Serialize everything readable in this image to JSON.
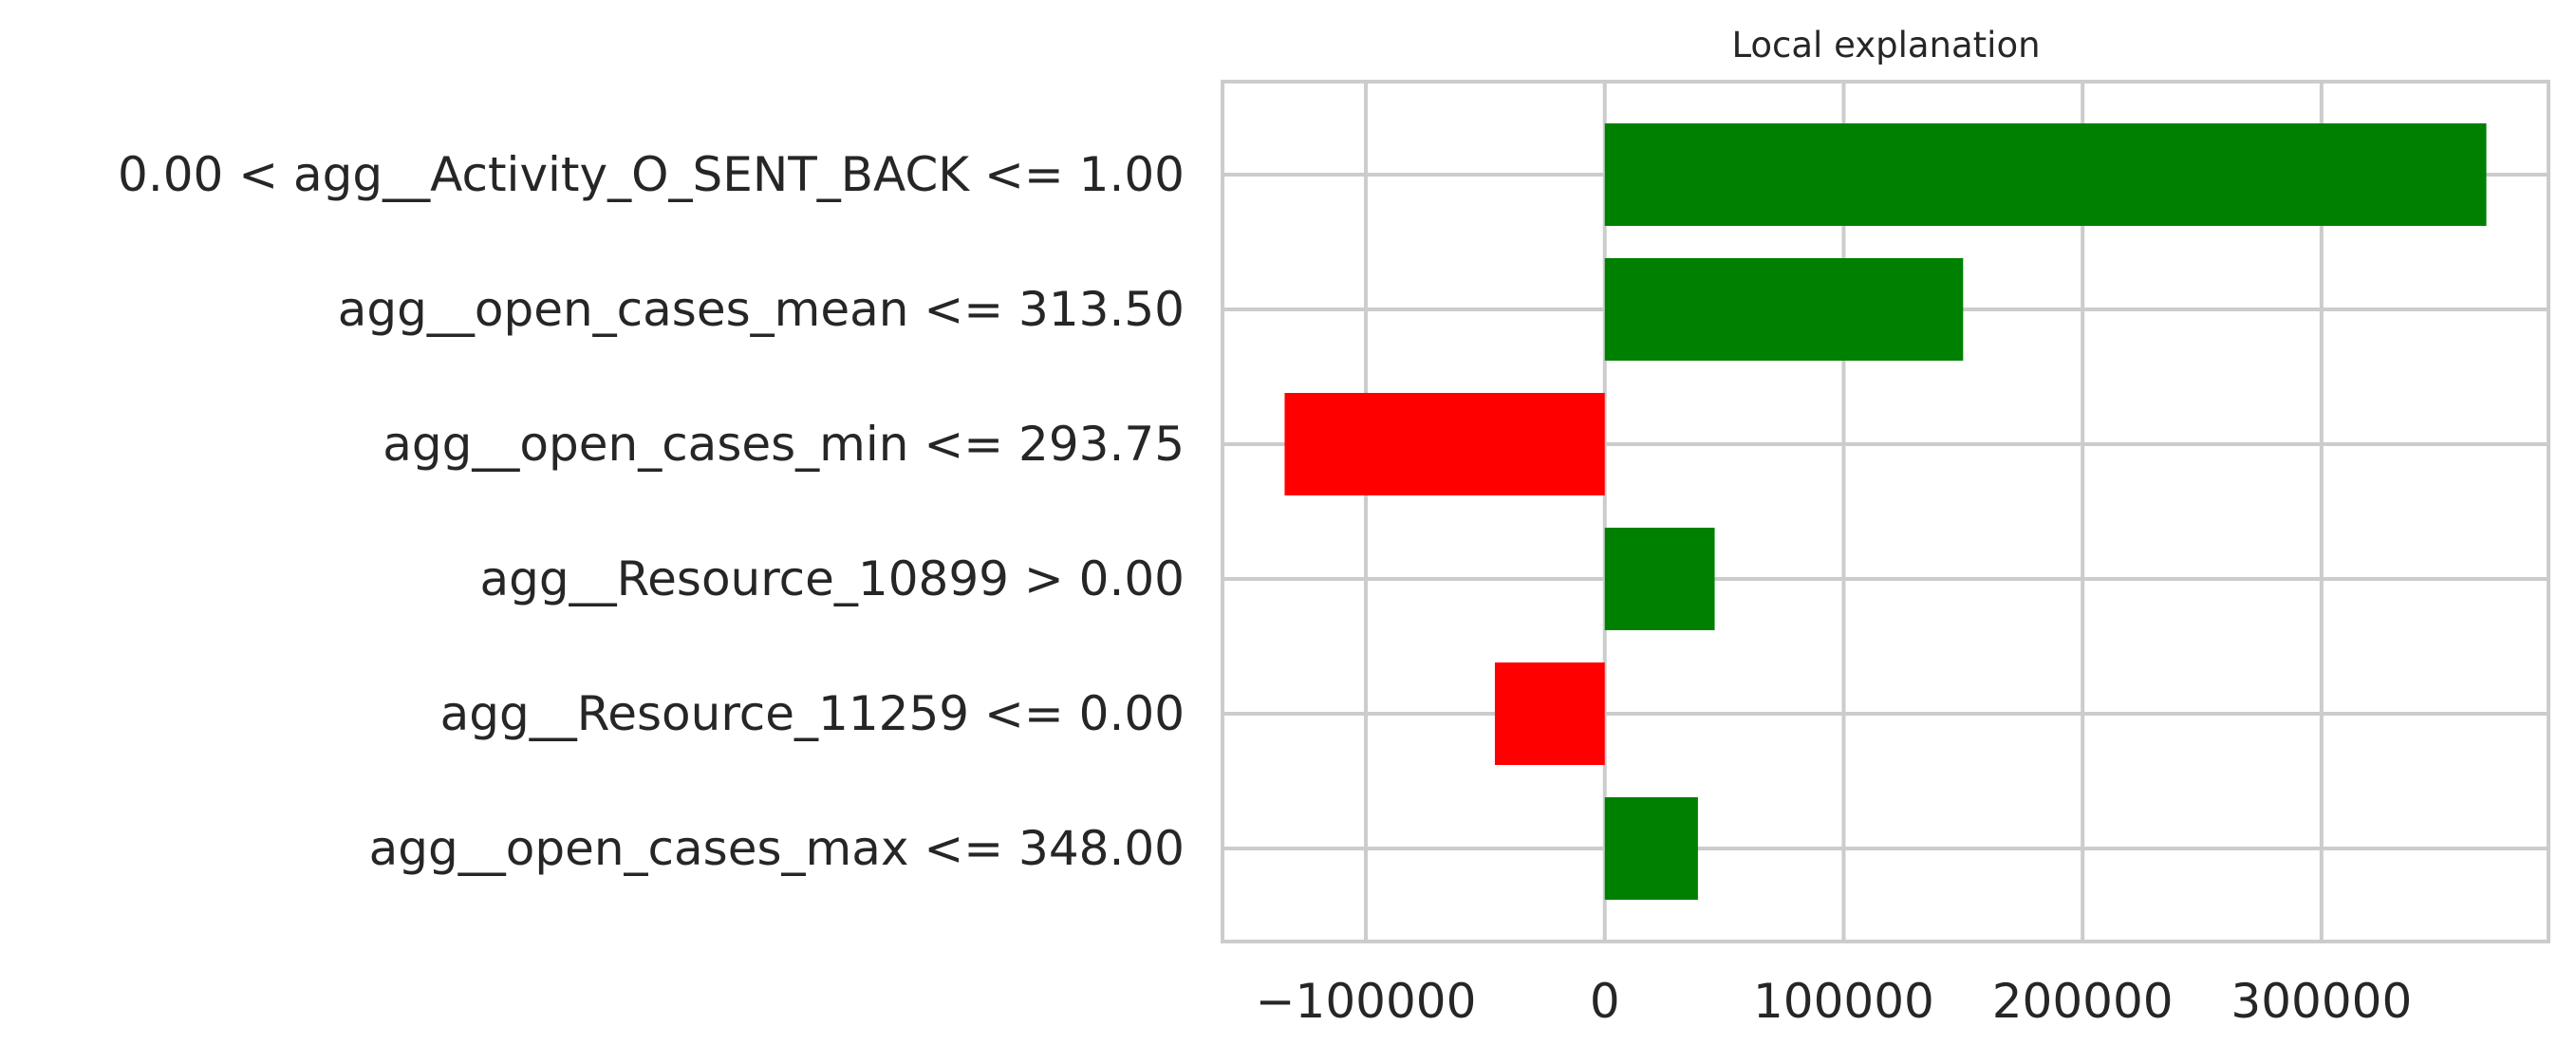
{
  "chart_data": {
    "type": "bar",
    "orientation": "horizontal",
    "title": "Local explanation",
    "xlabel": "",
    "ylabel": "",
    "categories": [
      "0.00 < agg__Activity_O_SENT_BACK <= 1.00",
      "agg__open_cases_mean <= 313.50",
      "agg__open_cases_min <= 293.75",
      "agg__Resource_10899 > 0.00",
      "agg__Resource_11259 <= 0.00",
      "agg__open_cases_max <= 348.00"
    ],
    "values": [
      369000,
      150000,
      -134000,
      46000,
      -46000,
      39000
    ],
    "colors": [
      "#008000",
      "#008000",
      "#ff0000",
      "#008000",
      "#ff0000",
      "#008000"
    ],
    "xlim": [
      -160000,
      395000
    ],
    "xticks": [
      -100000,
      0,
      100000,
      200000,
      300000
    ],
    "xtick_labels": [
      "−100000",
      "0",
      "100000",
      "200000",
      "300000"
    ],
    "grid": true
  }
}
